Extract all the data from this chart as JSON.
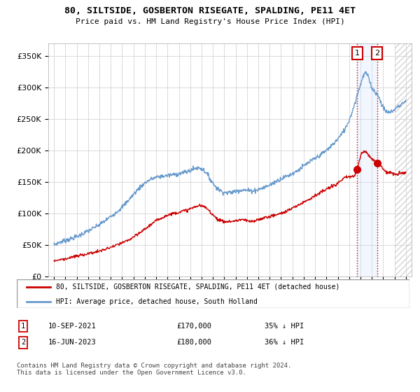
{
  "title": "80, SILTSIDE, GOSBERTON RISEGATE, SPALDING, PE11 4ET",
  "subtitle": "Price paid vs. HM Land Registry's House Price Index (HPI)",
  "ylabel_ticks": [
    "£0",
    "£50K",
    "£100K",
    "£150K",
    "£200K",
    "£250K",
    "£300K",
    "£350K"
  ],
  "ytick_vals": [
    0,
    50000,
    100000,
    150000,
    200000,
    250000,
    300000,
    350000
  ],
  "ylim": [
    0,
    370000
  ],
  "xlim_start": 1994.5,
  "xlim_end": 2026.5,
  "hpi_color": "#6699cc",
  "price_color": "#cc0000",
  "shade_color": "#cce0ff",
  "legend_label_price": "80, SILTSIDE, GOSBERTON RISEGATE, SPALDING, PE11 4ET (detached house)",
  "legend_label_hpi": "HPI: Average price, detached house, South Holland",
  "sale1_year": 2021.708,
  "sale1_price": 170000,
  "sale2_year": 2023.458,
  "sale2_price": 180000,
  "sale1_date": "10-SEP-2021",
  "sale1_price_str": "£170,000",
  "sale1_pct": "35% ↓ HPI",
  "sale2_date": "16-JUN-2023",
  "sale2_price_str": "£180,000",
  "sale2_pct": "36% ↓ HPI",
  "footer": "Contains HM Land Registry data © Crown copyright and database right 2024.\nThis data is licensed under the Open Government Licence v3.0.",
  "background_color": "#ffffff",
  "grid_color": "#cccccc"
}
